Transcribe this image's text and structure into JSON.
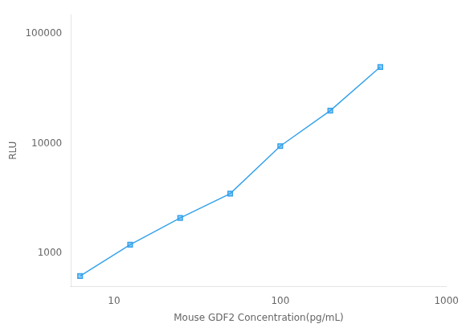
{
  "chart_data": {
    "type": "line",
    "x": [
      6.25,
      12.5,
      25,
      50,
      100,
      200,
      400
    ],
    "values": [
      620,
      1200,
      2100,
      3500,
      9500,
      20000,
      50000
    ],
    "xlabel": "Mouse GDF2 Concentration(pg/mL)",
    "ylabel": "RLU",
    "xlim": [
      5.5,
      1000
    ],
    "ylim": [
      500,
      150000
    ],
    "xticks": [
      10,
      100,
      1000
    ],
    "yticks": [
      1000,
      10000,
      100000
    ],
    "log": true,
    "grid": false,
    "marker": "square"
  }
}
